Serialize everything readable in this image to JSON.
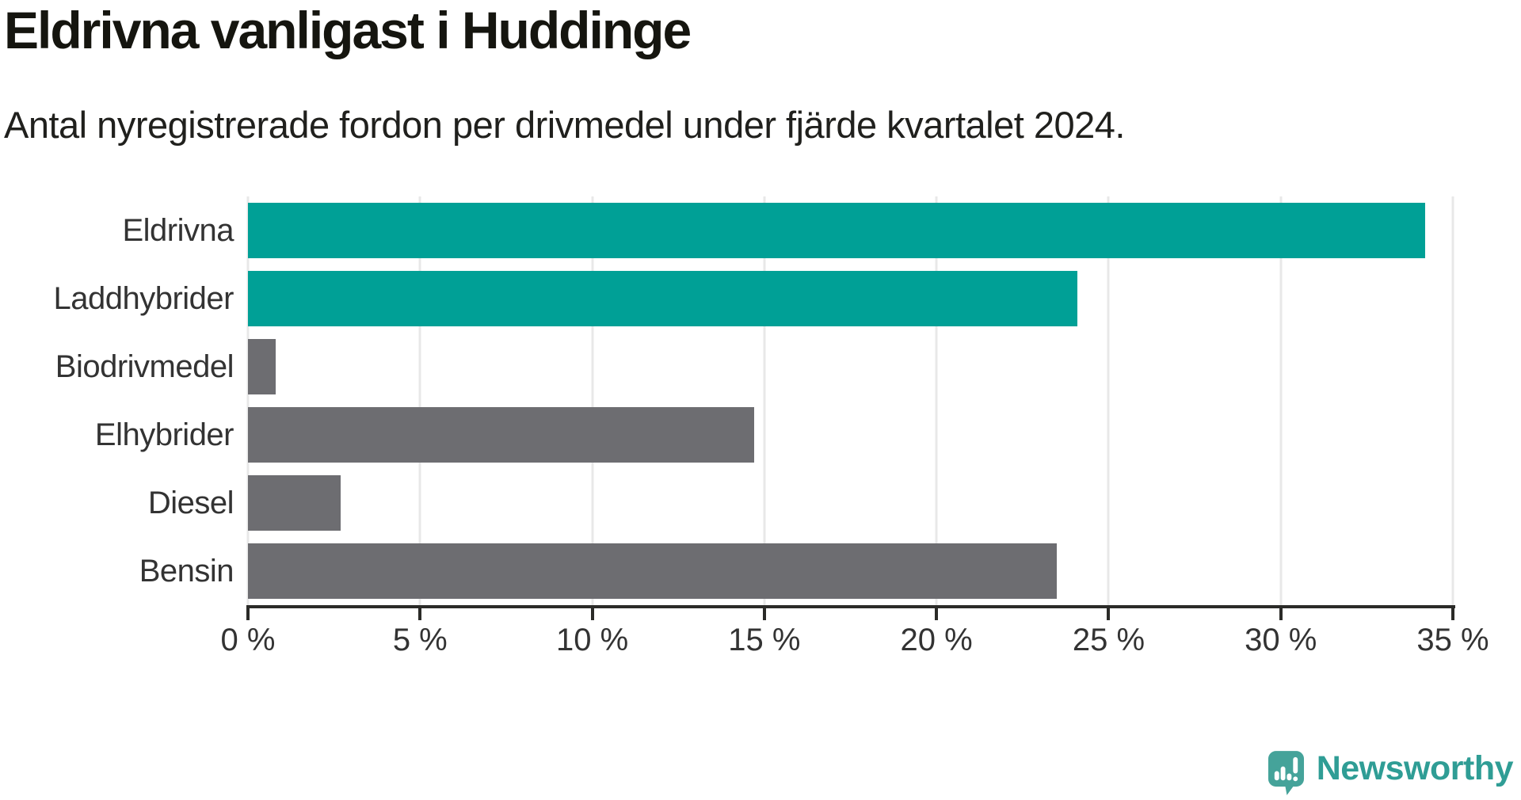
{
  "chart_data": {
    "type": "bar",
    "orientation": "horizontal",
    "title": "Eldrivna vanligast i Huddinge",
    "subtitle": "Antal nyregistrerade fordon per drivmedel under fjärde kvartalet 2024.",
    "categories": [
      "Eldrivna",
      "Laddhybrider",
      "Biodrivmedel",
      "Elhybrider",
      "Diesel",
      "Bensin"
    ],
    "values": [
      34.2,
      24.1,
      0.8,
      14.7,
      2.7,
      23.5
    ],
    "unit": "%",
    "bar_colors": [
      "#00a096",
      "#00a096",
      "#6d6d71",
      "#6d6d71",
      "#6d6d71",
      "#6d6d71"
    ],
    "highlight_color": "#00a096",
    "neutral_color": "#6d6d71",
    "xlim": [
      0,
      35
    ],
    "x_ticks": [
      0,
      5,
      10,
      15,
      20,
      25,
      30,
      35
    ],
    "x_tick_labels": [
      "0 %",
      "5 %",
      "10 %",
      "15 %",
      "20 %",
      "25 %",
      "30 %",
      "35 %"
    ],
    "grid": "vertical-gridlines-on",
    "legend": "none"
  },
  "branding": {
    "logo_text": "Newsworthy",
    "logo_color": "#2f9d95",
    "logo_icon": "speech-bubble-bar-chart-exclamation",
    "logo_icon_color": "#45a39a"
  }
}
